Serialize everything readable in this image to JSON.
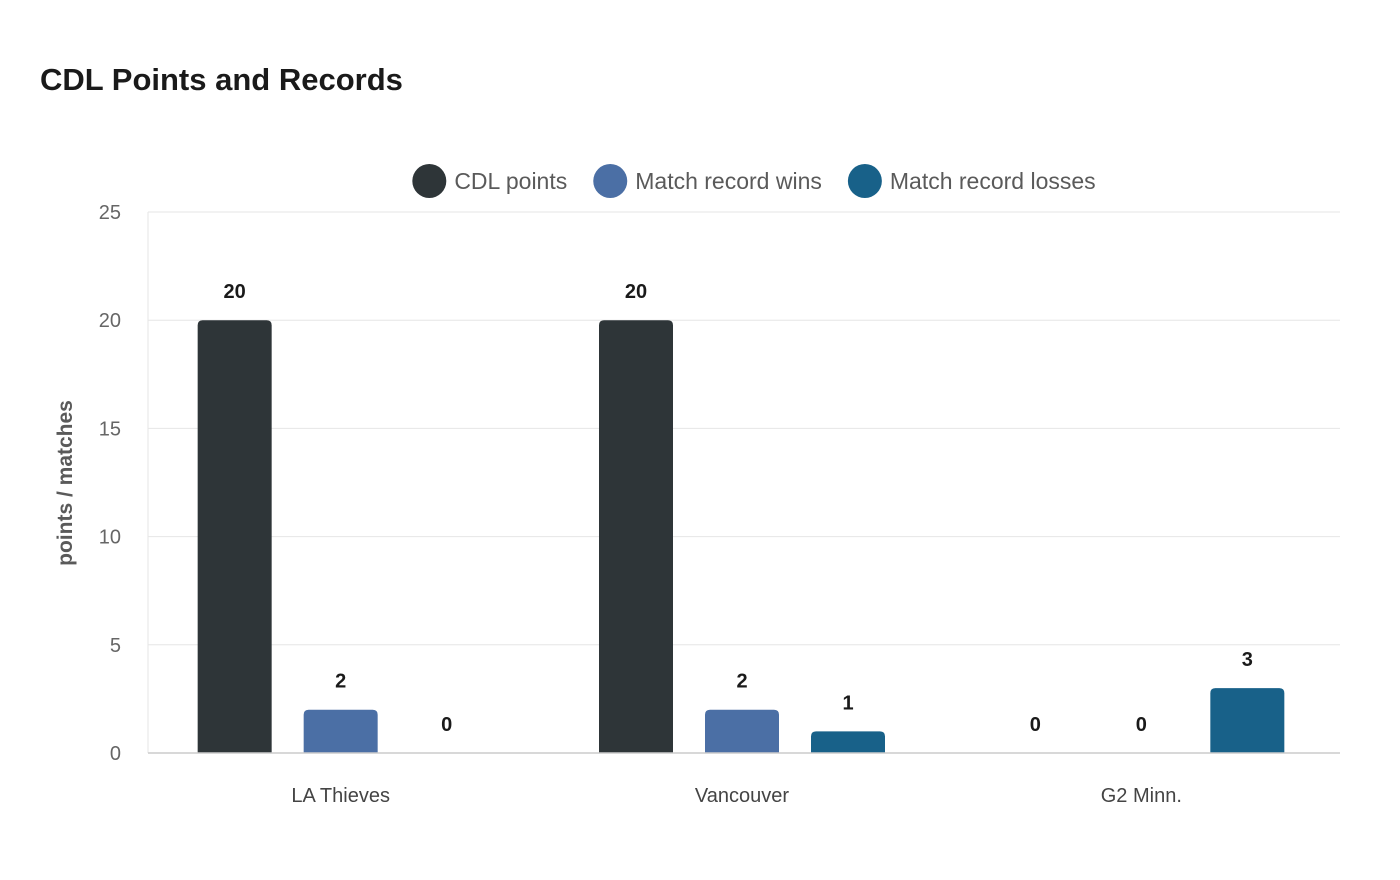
{
  "chart_data": {
    "type": "bar",
    "title": "CDL Points and Records",
    "ylabel": "points / matches",
    "xlabel": "",
    "categories": [
      "LA Thieves",
      "Vancouver",
      "G2 Minn."
    ],
    "series": [
      {
        "name": "CDL points",
        "color": "#2e3538",
        "values": [
          20,
          20,
          0
        ]
      },
      {
        "name": "Match record wins",
        "color": "#4b6fa5",
        "values": [
          2,
          2,
          0
        ]
      },
      {
        "name": "Match record losses",
        "color": "#186189",
        "values": [
          0,
          1,
          3
        ]
      }
    ],
    "ylim": [
      0,
      25
    ],
    "yticks": [
      0,
      5,
      10,
      15,
      20,
      25
    ],
    "grid": true,
    "legend": "top-center",
    "data_labels": true
  }
}
